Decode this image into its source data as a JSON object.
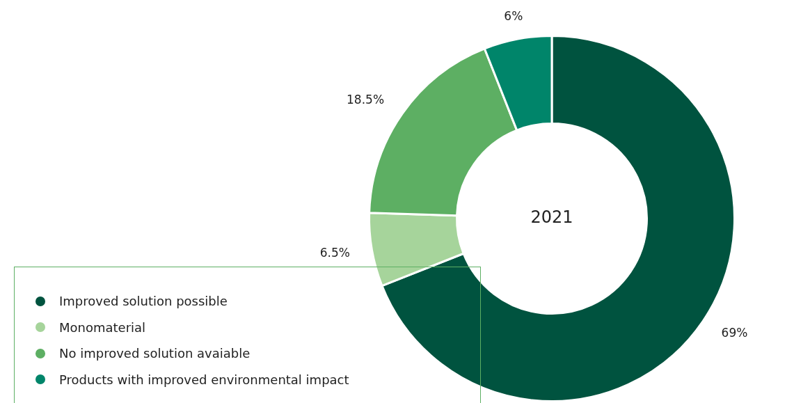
{
  "chart_data": {
    "type": "donut",
    "title": "2021",
    "categories": [
      "Improved solution possible",
      "Monomaterial",
      "No improved solution avaiable",
      "Products with improved environmental impact"
    ],
    "values": [
      69,
      6.5,
      18.5,
      6
    ],
    "colors": [
      "#00533f",
      "#a6d49b",
      "#5daf63",
      "#00856a"
    ],
    "value_labels": [
      "69%",
      "6.5%",
      "18.5%",
      "6%"
    ],
    "legend": "bottom left"
  }
}
